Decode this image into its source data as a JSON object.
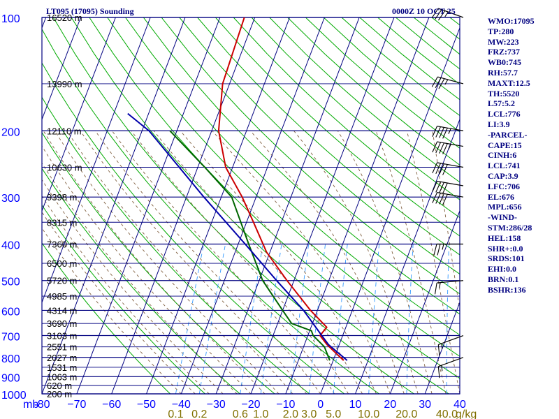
{
  "header": {
    "title": "LT095 (17095) Sounding",
    "timestamp": "0000Z 10 OCT 25"
  },
  "colors": {
    "frame": "#000080",
    "pressure_labels": "#0000ff",
    "dry_adiabats": "#00aa00",
    "moist_adiabats": "#806040",
    "mixing_ratio": "#3399ff",
    "temperature": "#cc0000",
    "dewpoint": "#006600",
    "parcel": "#0000aa",
    "mixing_ratio_labels": "#807000"
  },
  "chart_data": {
    "type": "line",
    "x_unit": "degC",
    "y_unit": "mb",
    "y_scale": "log",
    "ylim": [
      1000,
      100
    ],
    "xlim": [
      -80,
      40
    ],
    "y_corner_label": "mb",
    "pressure_ticks": [
      100,
      200,
      300,
      400,
      500,
      600,
      700,
      800,
      900,
      1000
    ],
    "temperature_ticks": [
      -80,
      -70,
      -60,
      -50,
      -40,
      -30,
      -20,
      -10,
      0,
      10,
      20,
      30,
      40
    ],
    "temperature_tick_labels": [
      "-80",
      "−70",
      "−60",
      "−50",
      "−40",
      "−30",
      "−20",
      "−10",
      "0",
      "10",
      "20",
      "30",
      "40"
    ],
    "height_labels": [
      {
        "p": 100,
        "label": "16520 m"
      },
      {
        "p": 150,
        "label": "13990 m"
      },
      {
        "p": 200,
        "label": "12110 m"
      },
      {
        "p": 250,
        "label": "10630 m"
      },
      {
        "p": 300,
        "label": "9398 m"
      },
      {
        "p": 350,
        "label": "8315 m"
      },
      {
        "p": 400,
        "label": "7360 m"
      },
      {
        "p": 450,
        "label": "6500 m"
      },
      {
        "p": 500,
        "label": "5720 m"
      },
      {
        "p": 550,
        "label": "4985 m"
      },
      {
        "p": 600,
        "label": "4314 m"
      },
      {
        "p": 650,
        "label": "3690 m"
      },
      {
        "p": 700,
        "label": "3103 m"
      },
      {
        "p": 750,
        "label": "2551 m"
      },
      {
        "p": 800,
        "label": "2027 m"
      },
      {
        "p": 850,
        "label": "1531 m"
      },
      {
        "p": 900,
        "label": "1063 m"
      },
      {
        "p": 950,
        "label": "620 m"
      },
      {
        "p": 1000,
        "label": "200 m"
      }
    ],
    "mixing_ratio_labels": [
      "0.1",
      "0.2",
      "0.6",
      "1.0",
      "2.0",
      "3.0",
      "5.0",
      "10.0",
      "20.0",
      "40.0"
    ],
    "mixing_ratio_unit": "g/kg",
    "mixing_ratio_values": [
      0.1,
      0.2,
      0.6,
      1.0,
      2.0,
      3.0,
      5.0,
      10.0,
      20.0,
      40.0
    ],
    "series": [
      {
        "key": "temperature",
        "points": [
          {
            "p": 815,
            "t": 3.0
          },
          {
            "p": 780,
            "t": 0.0
          },
          {
            "p": 740,
            "t": -3.5
          },
          {
            "p": 700,
            "t": -6.5
          },
          {
            "p": 665,
            "t": -5.5
          },
          {
            "p": 600,
            "t": -12.0
          },
          {
            "p": 500,
            "t": -22.0
          },
          {
            "p": 420,
            "t": -31.0
          },
          {
            "p": 350,
            "t": -38.0
          },
          {
            "p": 300,
            "t": -44.0
          },
          {
            "p": 250,
            "t": -52.0
          },
          {
            "p": 200,
            "t": -58.0
          },
          {
            "p": 150,
            "t": -62.0
          },
          {
            "p": 100,
            "t": -63.0
          }
        ]
      },
      {
        "key": "dewpoint",
        "points": [
          {
            "p": 815,
            "t": -1.0
          },
          {
            "p": 750,
            "t": -4.0
          },
          {
            "p": 700,
            "t": -8.5
          },
          {
            "p": 680,
            "t": -9.5
          },
          {
            "p": 650,
            "t": -16.0
          },
          {
            "p": 600,
            "t": -20.0
          },
          {
            "p": 500,
            "t": -29.0
          },
          {
            "p": 400,
            "t": -37.0
          },
          {
            "p": 300,
            "t": -47.0
          },
          {
            "p": 250,
            "t": -58.0
          },
          {
            "p": 200,
            "t": -72.0
          }
        ]
      },
      {
        "key": "parcel",
        "points": [
          {
            "p": 815,
            "t": 4.0
          },
          {
            "p": 741,
            "t": -3.0
          },
          {
            "p": 700,
            "t": -6.0
          },
          {
            "p": 600,
            "t": -14.0
          },
          {
            "p": 500,
            "t": -25.0
          },
          {
            "p": 400,
            "t": -38.0
          },
          {
            "p": 300,
            "t": -55.0
          },
          {
            "p": 200,
            "t": -78.0
          },
          {
            "p": 180,
            "t": -86.0
          }
        ]
      }
    ],
    "wind_barbs": [
      {
        "p": 100,
        "dir": 290,
        "kt": 35
      },
      {
        "p": 150,
        "dir": 285,
        "kt": 35
      },
      {
        "p": 200,
        "dir": 280,
        "kt": 45
      },
      {
        "p": 220,
        "dir": 280,
        "kt": 45
      },
      {
        "p": 250,
        "dir": 280,
        "kt": 40
      },
      {
        "p": 280,
        "dir": 280,
        "kt": 40
      },
      {
        "p": 300,
        "dir": 280,
        "kt": 40
      },
      {
        "p": 400,
        "dir": 270,
        "kt": 25
      },
      {
        "p": 500,
        "dir": 265,
        "kt": 15
      },
      {
        "p": 700,
        "dir": 250,
        "kt": 15
      },
      {
        "p": 800,
        "dir": 250,
        "kt": 15
      }
    ]
  },
  "indices": [
    "WMO:17095",
    "TP:280",
    "MW:223",
    "FRZ:737",
    "WB0:745",
    "RH:57.7",
    "MAXT:12.5",
    "TH:5520",
    "L57:5.2",
    "LCL:776",
    "LI:3.9",
    "-PARCEL-",
    "CAPE:15",
    "CINH:6",
    "LCL:741",
    "CAP:3.9",
    "LFC:706",
    "EL:676",
    "MPL:656",
    "-WIND-",
    "STM:286/28",
    "HEL:158",
    "SHR+:0.0",
    "SRDS:101",
    "EHI:0.0",
    "BRN:0.1",
    "BSHR:136"
  ]
}
